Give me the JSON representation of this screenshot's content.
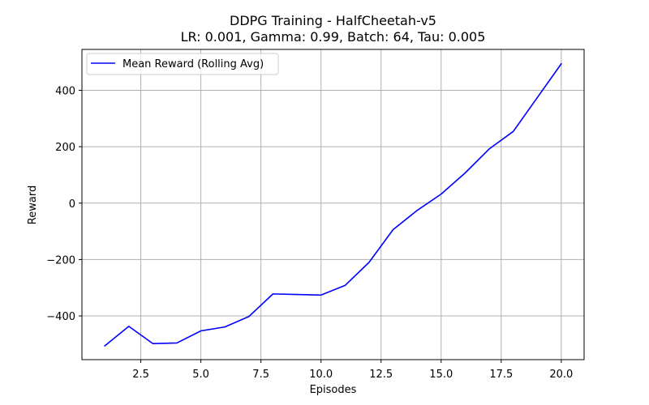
{
  "chart_data": {
    "type": "line",
    "title": "DDPG Training - HalfCheetah-v5",
    "subtitle": "LR: 0.001, Gamma: 0.99, Batch: 64, Tau: 0.005",
    "xlabel": "Episodes",
    "ylabel": "Reward",
    "xlim": [
      0.05,
      20.95
    ],
    "ylim": [
      -555,
      545
    ],
    "xticks": [
      2.5,
      5.0,
      7.5,
      10.0,
      12.5,
      15.0,
      17.5,
      20.0
    ],
    "xtick_labels": [
      "2.5",
      "5.0",
      "7.5",
      "10.0",
      "12.5",
      "15.0",
      "17.5",
      "20.0"
    ],
    "yticks": [
      -400,
      -200,
      0,
      200,
      400
    ],
    "ytick_labels": [
      "−400",
      "−200",
      "0",
      "200",
      "400"
    ],
    "grid": true,
    "legend_position": "top-left",
    "series": [
      {
        "name": "Mean Reward (Rolling Avg)",
        "color": "#0000ff",
        "x": [
          1,
          2,
          3,
          4,
          5,
          6,
          7,
          8,
          9,
          10,
          11,
          12,
          13,
          14,
          15,
          16,
          17,
          18,
          19,
          20
        ],
        "y": [
          -506,
          -437,
          -498,
          -496,
          -453,
          -439,
          -402,
          -322,
          -324,
          -326,
          -292,
          -210,
          -94,
          -26,
          32,
          107,
          192,
          254,
          374,
          494
        ]
      }
    ]
  }
}
